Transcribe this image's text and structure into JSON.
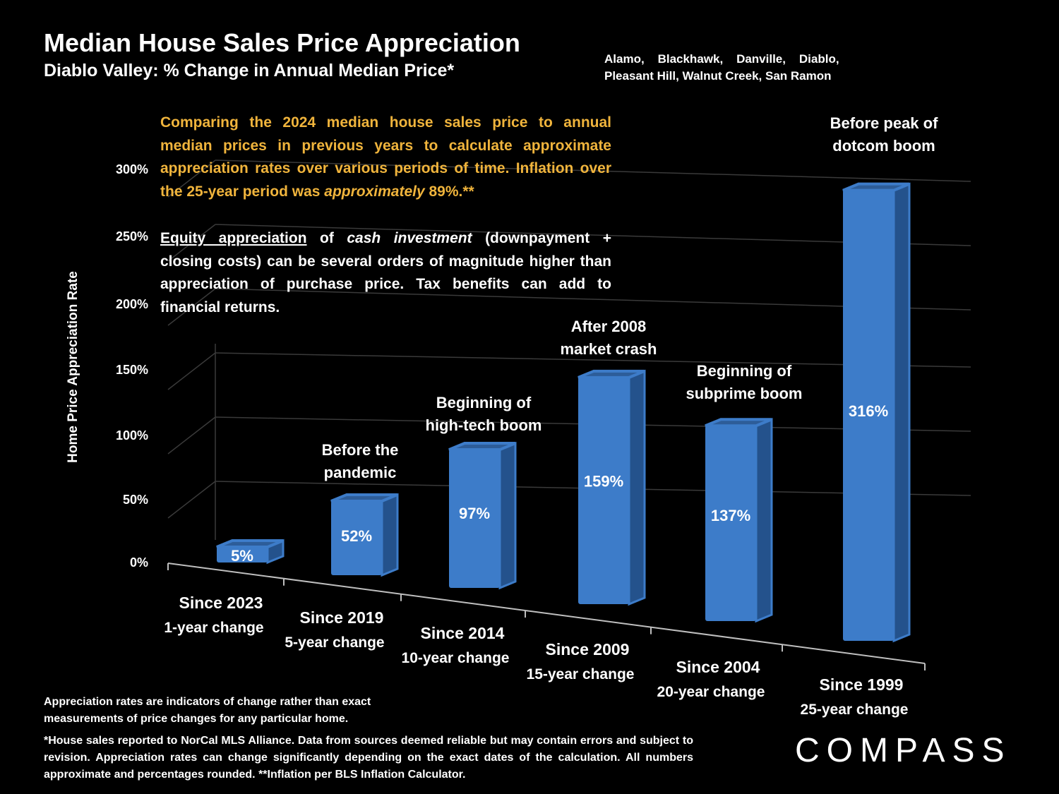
{
  "title": "Median House Sales Price Appreciation",
  "subtitle": "Diablo Valley: % Change in Annual Median Price*",
  "regions": "Alamo,    Blackhawk,    Danville,    Diablo,\nPleasant Hill, Walnut Creek, San Ramon",
  "intro_text": "Comparing the 2024 median house sales price to annual median prices in previous years to calculate approximate appreciation rates over various periods of time. Inflation over the 25-year period was ",
  "intro_italic": "approximately",
  "intro_tail": " 89%.**",
  "equity": {
    "underline": "Equity appreciation",
    "part1": " of ",
    "italic": "cash investment",
    "part2": " (downpayment + closing costs) can be several orders of magnitude higher than appreciation of purchase price. Tax benefits can add to financial returns."
  },
  "footnote1": "Appreciation rates are indicators of change rather than exact measurements of price changes for any particular home.",
  "footnote2": "*House sales reported to NorCal MLS Alliance. Data from sources deemed reliable but may contain errors and subject to revision. Appreciation rates can change significantly depending on the exact dates of the calculation. All numbers  approximate and percentages rounded. **Inflation per BLS Inflation Calculator.",
  "logo": "COMPASS",
  "colors": {
    "bar": "#3d7cc9",
    "bar_dark": "#24528c",
    "bar_top": "#2d5d99",
    "accent": "#f0b43c",
    "background": "#000000"
  },
  "chart_data": {
    "type": "bar",
    "ylabel": "Home Price Appreciation Rate",
    "ylim": [
      0,
      300
    ],
    "yticks": [
      "0%",
      "50%",
      "100%",
      "150%",
      "200%",
      "250%",
      "300%"
    ],
    "grid": true,
    "categories": [
      {
        "line1": "Since 2023",
        "line2": "1-year change"
      },
      {
        "line1": "Since 2019",
        "line2": "5-year change"
      },
      {
        "line1": "Since 2014",
        "line2": "10-year change"
      },
      {
        "line1": "Since 2009",
        "line2": "15-year change"
      },
      {
        "line1": "Since 2004",
        "line2": "20-year change"
      },
      {
        "line1": "Since 1999",
        "line2": "25-year change"
      }
    ],
    "values": [
      5,
      52,
      97,
      159,
      137,
      316
    ],
    "data_labels": [
      "5%",
      "52%",
      "97%",
      "159%",
      "137%",
      "316%"
    ],
    "annotations": [
      "",
      "Before the\npandemic",
      "Beginning of\nhigh-tech boom",
      "After 2008\nmarket crash",
      "Beginning of\nsubprime boom",
      "Before peak of\ndotcom boom"
    ]
  }
}
